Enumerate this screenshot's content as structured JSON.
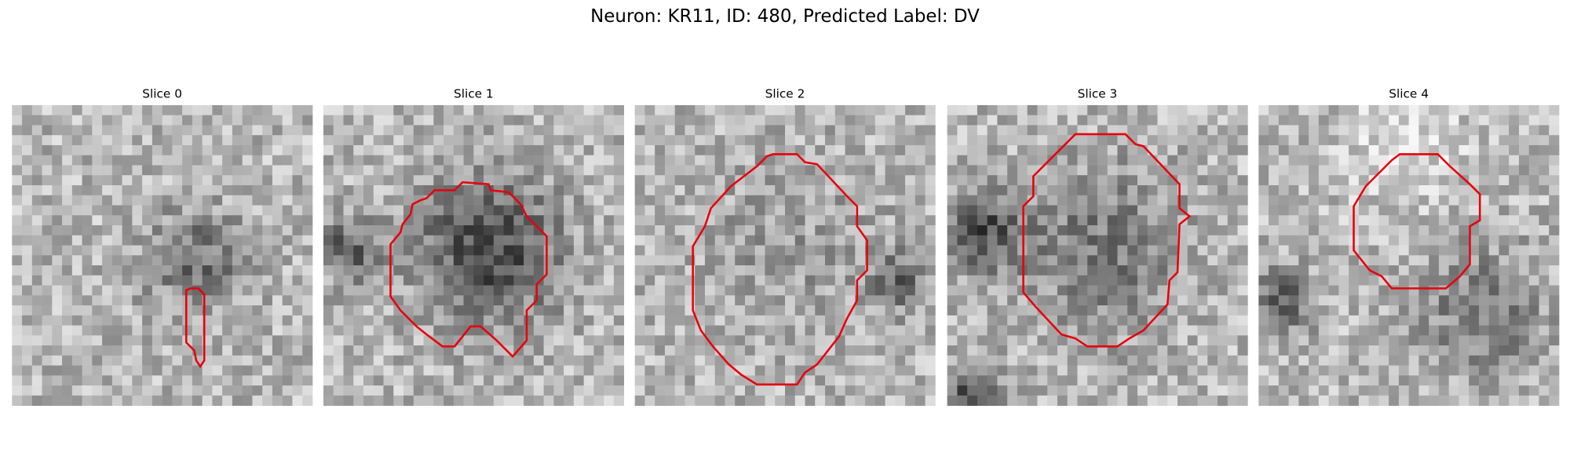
{
  "title": "Neuron: KR11, ID: 480, Predicted Label: DV",
  "panels": [
    {
      "title": "Slice 0"
    },
    {
      "title": "Slice 1"
    },
    {
      "title": "Slice 2"
    },
    {
      "title": "Slice 3"
    },
    {
      "title": "Slice 4"
    }
  ]
}
